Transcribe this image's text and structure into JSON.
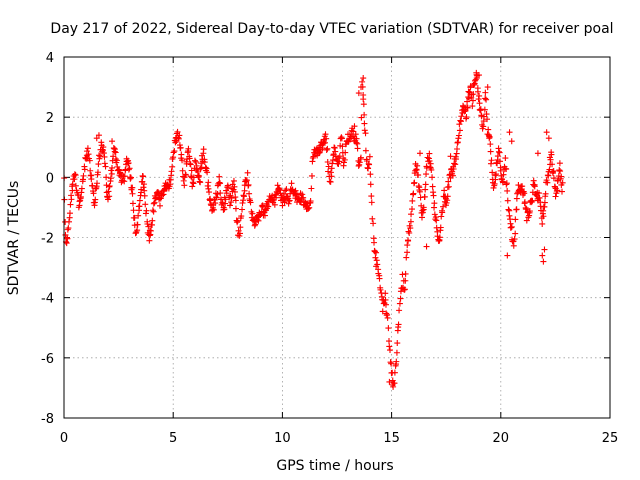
{
  "chart_data": {
    "type": "scatter",
    "title": "Day 217 of 2022, Sidereal Day-to-day VTEC variation (SDTVAR) for receiver poal",
    "xlabel": "GPS time / hours",
    "ylabel": "SDTVAR / TECUs",
    "xlim": [
      0,
      25
    ],
    "ylim": [
      -8,
      4
    ],
    "xticks": [
      0,
      5,
      10,
      15,
      20,
      25
    ],
    "yticks": [
      -8,
      -6,
      -4,
      -2,
      0,
      2,
      4
    ],
    "grid": true,
    "marker": "+",
    "color": "#ff0000",
    "series": [
      {
        "name": "SDTVAR",
        "trace": [
          [
            0.0,
            0.0
          ],
          [
            0.05,
            -1.4
          ],
          [
            0.1,
            -2.1
          ],
          [
            0.2,
            -1.8
          ],
          [
            0.3,
            -0.8
          ],
          [
            0.4,
            -0.2
          ],
          [
            0.5,
            0.2
          ],
          [
            0.6,
            -0.5
          ],
          [
            0.7,
            -1.0
          ],
          [
            0.8,
            -0.4
          ],
          [
            0.9,
            0.2
          ],
          [
            1.0,
            0.6
          ],
          [
            1.1,
            0.8
          ],
          [
            1.2,
            0.3
          ],
          [
            1.3,
            -0.4
          ],
          [
            1.4,
            -0.9
          ],
          [
            1.5,
            -0.3
          ],
          [
            1.6,
            0.6
          ],
          [
            1.7,
            1.1
          ],
          [
            1.8,
            0.9
          ],
          [
            1.9,
            0.2
          ],
          [
            2.0,
            -0.8
          ],
          [
            2.1,
            -0.4
          ],
          [
            2.2,
            0.4
          ],
          [
            2.3,
            1.0
          ],
          [
            2.4,
            0.6
          ],
          [
            2.5,
            0.2
          ],
          [
            2.6,
            0.0
          ],
          [
            2.7,
            -0.2
          ],
          [
            2.8,
            0.1
          ],
          [
            2.9,
            0.7
          ],
          [
            3.0,
            0.3
          ],
          [
            3.1,
            -0.3
          ],
          [
            3.2,
            -1.2
          ],
          [
            3.3,
            -1.9
          ],
          [
            3.4,
            -1.3
          ],
          [
            3.5,
            -0.5
          ],
          [
            3.6,
            0.1
          ],
          [
            3.7,
            -0.6
          ],
          [
            3.8,
            -1.5
          ],
          [
            3.9,
            -2.0
          ],
          [
            4.0,
            -1.6
          ],
          [
            4.1,
            -1.0
          ],
          [
            4.2,
            -0.6
          ],
          [
            4.3,
            -0.4
          ],
          [
            4.4,
            -0.9
          ],
          [
            4.5,
            -0.5
          ],
          [
            4.6,
            -0.3
          ],
          [
            4.8,
            -0.2
          ],
          [
            4.9,
            -0.1
          ],
          [
            5.0,
            0.7
          ],
          [
            5.1,
            1.2
          ],
          [
            5.2,
            1.5
          ],
          [
            5.3,
            1.2
          ],
          [
            5.4,
            0.5
          ],
          [
            5.5,
            -0.2
          ],
          [
            5.6,
            0.4
          ],
          [
            5.7,
            0.9
          ],
          [
            5.8,
            0.3
          ],
          [
            5.9,
            -0.3
          ],
          [
            6.0,
            0.6
          ],
          [
            6.1,
            0.2
          ],
          [
            6.2,
            -0.2
          ],
          [
            6.3,
            0.5
          ],
          [
            6.4,
            0.8
          ],
          [
            6.5,
            0.3
          ],
          [
            6.6,
            -0.3
          ],
          [
            6.7,
            -0.9
          ],
          [
            6.8,
            -1.2
          ],
          [
            6.9,
            -0.8
          ],
          [
            7.0,
            -0.5
          ],
          [
            7.1,
            -0.1
          ],
          [
            7.2,
            -0.7
          ],
          [
            7.3,
            -1.1
          ],
          [
            7.4,
            -0.6
          ],
          [
            7.5,
            -0.3
          ],
          [
            7.6,
            -0.8
          ],
          [
            7.8,
            -0.2
          ],
          [
            7.9,
            -1.3
          ],
          [
            8.0,
            -1.9
          ],
          [
            8.1,
            -1.5
          ],
          [
            8.2,
            -0.8
          ],
          [
            8.3,
            -0.2
          ],
          [
            8.4,
            0.0
          ],
          [
            8.5,
            -0.6
          ],
          [
            8.6,
            -1.2
          ],
          [
            8.7,
            -1.5
          ],
          [
            8.8,
            -1.4
          ],
          [
            8.9,
            -1.3
          ],
          [
            9.0,
            -1.1
          ],
          [
            9.2,
            -1.1
          ],
          [
            9.4,
            -0.8
          ],
          [
            9.5,
            -0.6
          ],
          [
            9.6,
            -0.9
          ],
          [
            9.7,
            -0.6
          ],
          [
            9.8,
            -0.3
          ],
          [
            10.0,
            -0.8
          ],
          [
            10.2,
            -0.5
          ],
          [
            10.3,
            -0.9
          ],
          [
            10.4,
            -0.3
          ],
          [
            10.5,
            -0.5
          ],
          [
            10.7,
            -0.7
          ],
          [
            10.9,
            -0.7
          ],
          [
            11.1,
            -0.9
          ],
          [
            11.3,
            -0.9
          ],
          [
            11.4,
            0.8
          ],
          [
            11.45,
            0.9
          ],
          [
            11.5,
            0.8
          ],
          [
            11.6,
            0.8
          ],
          [
            12.0,
            1.3
          ],
          [
            12.1,
            0.3
          ],
          [
            12.2,
            -0.1
          ],
          [
            12.4,
            1.1
          ],
          [
            12.5,
            0.4
          ],
          [
            12.6,
            0.6
          ],
          [
            12.7,
            1.3
          ],
          [
            12.8,
            0.5
          ],
          [
            12.9,
            1.0
          ],
          [
            13.0,
            1.3
          ],
          [
            13.2,
            1.5
          ],
          [
            13.4,
            1.2
          ],
          [
            13.5,
            0.4
          ],
          [
            13.6,
            0.6
          ],
          [
            13.65,
            3.1
          ],
          [
            13.7,
            2.8
          ],
          [
            13.8,
            1.3
          ],
          [
            13.9,
            0.2
          ],
          [
            14.0,
            0.6
          ],
          [
            14.1,
            -1.0
          ],
          [
            14.2,
            -2.2
          ],
          [
            14.3,
            -2.8
          ],
          [
            14.4,
            -3.2
          ],
          [
            14.5,
            -3.8
          ],
          [
            14.6,
            -4.3
          ],
          [
            14.7,
            -4.0
          ],
          [
            14.8,
            -4.6
          ],
          [
            14.9,
            -5.5
          ],
          [
            15.0,
            -6.5
          ],
          [
            15.1,
            -7.0
          ],
          [
            15.2,
            -6.2
          ],
          [
            15.3,
            -5.0
          ],
          [
            15.4,
            -4.0
          ],
          [
            15.5,
            -3.4
          ],
          [
            15.6,
            -3.8
          ],
          [
            15.7,
            -2.5
          ],
          [
            15.8,
            -1.8
          ],
          [
            15.9,
            -1.4
          ],
          [
            16.0,
            -0.4
          ],
          [
            16.1,
            0.4
          ],
          [
            16.2,
            0.2
          ],
          [
            16.3,
            -0.6
          ],
          [
            16.4,
            -1.4
          ],
          [
            16.5,
            -0.8
          ],
          [
            16.6,
            0.2
          ],
          [
            16.7,
            0.8
          ],
          [
            16.8,
            0.3
          ],
          [
            16.9,
            -0.6
          ],
          [
            17.0,
            -1.3
          ],
          [
            17.2,
            -2.2
          ],
          [
            17.3,
            -1.2
          ],
          [
            17.4,
            -0.6
          ],
          [
            17.5,
            -0.9
          ],
          [
            17.6,
            -0.3
          ],
          [
            17.7,
            0.1
          ],
          [
            17.8,
            0.2
          ],
          [
            18.0,
            0.9
          ],
          [
            18.1,
            1.6
          ],
          [
            18.2,
            2.0
          ],
          [
            18.3,
            2.4
          ],
          [
            18.4,
            2.0
          ],
          [
            18.5,
            2.6
          ],
          [
            18.6,
            3.0
          ],
          [
            18.7,
            2.5
          ],
          [
            18.8,
            3.2
          ],
          [
            18.9,
            3.4
          ],
          [
            19.0,
            2.6
          ],
          [
            19.1,
            2.0
          ],
          [
            19.2,
            1.6
          ],
          [
            19.3,
            2.8
          ],
          [
            19.4,
            1.6
          ],
          [
            19.5,
            1.2
          ],
          [
            19.6,
            0.2
          ],
          [
            19.7,
            -0.4
          ],
          [
            19.8,
            0.4
          ],
          [
            19.9,
            1.0
          ],
          [
            20.0,
            0.3
          ],
          [
            20.1,
            -0.2
          ],
          [
            20.2,
            0.6
          ],
          [
            20.3,
            -0.6
          ],
          [
            20.4,
            -1.2
          ],
          [
            20.5,
            -1.8
          ],
          [
            20.6,
            -2.4
          ],
          [
            20.7,
            -1.2
          ],
          [
            20.8,
            -0.3
          ],
          [
            21.0,
            -0.4
          ],
          [
            21.2,
            -1.3
          ],
          [
            21.4,
            -0.9
          ],
          [
            21.5,
            -0.2
          ],
          [
            21.6,
            -0.6
          ],
          [
            21.8,
            -0.7
          ],
          [
            21.9,
            -1.5
          ],
          [
            22.0,
            -0.9
          ],
          [
            22.1,
            -0.2
          ],
          [
            22.2,
            0.3
          ],
          [
            22.3,
            0.8
          ],
          [
            22.4,
            0.2
          ],
          [
            22.5,
            -0.5
          ],
          [
            22.6,
            -0.2
          ],
          [
            22.7,
            0.3
          ],
          [
            22.8,
            -0.3
          ],
          [
            22.85,
            0.1
          ]
        ],
        "outliers": [
          [
            13.7,
            3.3
          ],
          [
            13.6,
            3.0
          ],
          [
            13.7,
            2.6
          ],
          [
            13.5,
            2.8
          ],
          [
            19.0,
            3.4
          ],
          [
            18.9,
            3.3
          ],
          [
            19.4,
            3.0
          ],
          [
            1.6,
            1.4
          ],
          [
            1.5,
            1.3
          ],
          [
            2.2,
            1.2
          ],
          [
            21.9,
            -2.6
          ],
          [
            21.95,
            -2.8
          ],
          [
            22.0,
            -2.4
          ],
          [
            20.3,
            -2.6
          ],
          [
            14.9,
            -6.8
          ],
          [
            15.05,
            -6.9
          ],
          [
            16.6,
            -2.3
          ],
          [
            16.3,
            0.8
          ],
          [
            13.3,
            1.7
          ],
          [
            17.7,
            0.7
          ],
          [
            22.1,
            1.5
          ],
          [
            22.2,
            1.3
          ],
          [
            21.7,
            0.8
          ],
          [
            20.4,
            1.5
          ],
          [
            20.5,
            1.2
          ]
        ]
      }
    ]
  }
}
